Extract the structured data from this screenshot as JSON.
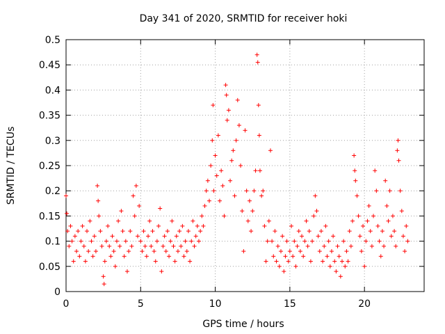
{
  "chart_data": {
    "type": "scatter",
    "title": "Day 341 of 2020, SRMTID for receiver hoki",
    "xlabel": "GPS time / hours",
    "ylabel": "SRMTID / TECUs",
    "xlim": [
      0,
      24
    ],
    "ylim": [
      0,
      0.5
    ],
    "xticks": [
      0,
      5,
      10,
      15,
      20
    ],
    "xtick_labels": [
      "0",
      "5",
      "10",
      "15",
      "20"
    ],
    "yticks": [
      0,
      0.05,
      0.1,
      0.15,
      0.2,
      0.25,
      0.3,
      0.35,
      0.4,
      0.45,
      0.5
    ],
    "ytick_labels": [
      "0",
      "0.05",
      "0.1",
      "0.15",
      "0.2",
      "0.25",
      "0.3",
      "0.35",
      "0.4",
      "0.45",
      "0.5"
    ],
    "grid": true,
    "marker": "+",
    "series_color": "#ff0000",
    "series": [
      {
        "name": "SRMTID",
        "points": [
          [
            0.0,
            0.19
          ],
          [
            0.05,
            0.155
          ],
          [
            0.1,
            0.12
          ],
          [
            0.2,
            0.09
          ],
          [
            0.3,
            0.13
          ],
          [
            0.4,
            0.1
          ],
          [
            0.5,
            0.06
          ],
          [
            0.6,
            0.11
          ],
          [
            0.7,
            0.08
          ],
          [
            0.8,
            0.12
          ],
          [
            0.9,
            0.07
          ],
          [
            1.0,
            0.1
          ],
          [
            1.1,
            0.13
          ],
          [
            1.2,
            0.09
          ],
          [
            1.3,
            0.06
          ],
          [
            1.4,
            0.12
          ],
          [
            1.5,
            0.08
          ],
          [
            1.6,
            0.14
          ],
          [
            1.7,
            0.1
          ],
          [
            1.8,
            0.07
          ],
          [
            1.9,
            0.11
          ],
          [
            2.0,
            0.08
          ],
          [
            2.1,
            0.21
          ],
          [
            2.15,
            0.18
          ],
          [
            2.2,
            0.15
          ],
          [
            2.3,
            0.12
          ],
          [
            2.4,
            0.09
          ],
          [
            2.5,
            0.03
          ],
          [
            2.55,
            0.015
          ],
          [
            2.6,
            0.06
          ],
          [
            2.7,
            0.1
          ],
          [
            2.8,
            0.13
          ],
          [
            2.9,
            0.09
          ],
          [
            3.0,
            0.07
          ],
          [
            3.1,
            0.11
          ],
          [
            3.2,
            0.08
          ],
          [
            3.3,
            0.05
          ],
          [
            3.4,
            0.1
          ],
          [
            3.5,
            0.14
          ],
          [
            3.6,
            0.09
          ],
          [
            3.7,
            0.16
          ],
          [
            3.8,
            0.12
          ],
          [
            3.9,
            0.07
          ],
          [
            4.0,
            0.1
          ],
          [
            4.1,
            0.04
          ],
          [
            4.2,
            0.08
          ],
          [
            4.3,
            0.12
          ],
          [
            4.4,
            0.09
          ],
          [
            4.5,
            0.19
          ],
          [
            4.6,
            0.15
          ],
          [
            4.7,
            0.21
          ],
          [
            4.8,
            0.11
          ],
          [
            4.9,
            0.17
          ],
          [
            5.0,
            0.1
          ],
          [
            5.1,
            0.08
          ],
          [
            5.2,
            0.12
          ],
          [
            5.3,
            0.09
          ],
          [
            5.4,
            0.07
          ],
          [
            5.5,
            0.11
          ],
          [
            5.6,
            0.14
          ],
          [
            5.7,
            0.09
          ],
          [
            5.8,
            0.12
          ],
          [
            5.9,
            0.08
          ],
          [
            6.0,
            0.06
          ],
          [
            6.1,
            0.1
          ],
          [
            6.2,
            0.13
          ],
          [
            6.3,
            0.165
          ],
          [
            6.4,
            0.04
          ],
          [
            6.5,
            0.09
          ],
          [
            6.6,
            0.11
          ],
          [
            6.7,
            0.08
          ],
          [
            6.8,
            0.12
          ],
          [
            6.9,
            0.07
          ],
          [
            7.0,
            0.1
          ],
          [
            7.1,
            0.14
          ],
          [
            7.2,
            0.09
          ],
          [
            7.3,
            0.06
          ],
          [
            7.4,
            0.11
          ],
          [
            7.5,
            0.08
          ],
          [
            7.6,
            0.12
          ],
          [
            7.7,
            0.09
          ],
          [
            7.8,
            0.13
          ],
          [
            7.9,
            0.07
          ],
          [
            8.0,
            0.1
          ],
          [
            8.1,
            0.08
          ],
          [
            8.2,
            0.12
          ],
          [
            8.3,
            0.06
          ],
          [
            8.4,
            0.1
          ],
          [
            8.5,
            0.14
          ],
          [
            8.6,
            0.09
          ],
          [
            8.7,
            0.11
          ],
          [
            8.8,
            0.13
          ],
          [
            8.9,
            0.1
          ],
          [
            9.0,
            0.12
          ],
          [
            9.1,
            0.15
          ],
          [
            9.2,
            0.13
          ],
          [
            9.3,
            0.17
          ],
          [
            9.4,
            0.2
          ],
          [
            9.5,
            0.22
          ],
          [
            9.6,
            0.18
          ],
          [
            9.7,
            0.25
          ],
          [
            9.8,
            0.3
          ],
          [
            9.85,
            0.37
          ],
          [
            9.9,
            0.2
          ],
          [
            10.0,
            0.27
          ],
          [
            10.1,
            0.23
          ],
          [
            10.2,
            0.31
          ],
          [
            10.3,
            0.18
          ],
          [
            10.4,
            0.24
          ],
          [
            10.5,
            0.21
          ],
          [
            10.6,
            0.15
          ],
          [
            10.7,
            0.41
          ],
          [
            10.75,
            0.39
          ],
          [
            10.8,
            0.34
          ],
          [
            10.9,
            0.36
          ],
          [
            11.0,
            0.22
          ],
          [
            11.1,
            0.26
          ],
          [
            11.2,
            0.28
          ],
          [
            11.3,
            0.19
          ],
          [
            11.4,
            0.3
          ],
          [
            11.5,
            0.38
          ],
          [
            11.6,
            0.33
          ],
          [
            11.7,
            0.25
          ],
          [
            11.8,
            0.16
          ],
          [
            11.9,
            0.08
          ],
          [
            12.0,
            0.32
          ],
          [
            12.1,
            0.2
          ],
          [
            12.2,
            0.14
          ],
          [
            12.3,
            0.18
          ],
          [
            12.4,
            0.12
          ],
          [
            12.5,
            0.16
          ],
          [
            12.6,
            0.2
          ],
          [
            12.7,
            0.24
          ],
          [
            12.8,
            0.47
          ],
          [
            12.85,
            0.455
          ],
          [
            12.9,
            0.37
          ],
          [
            12.95,
            0.31
          ],
          [
            13.0,
            0.24
          ],
          [
            13.1,
            0.19
          ],
          [
            13.2,
            0.2
          ],
          [
            13.3,
            0.13
          ],
          [
            13.4,
            0.06
          ],
          [
            13.5,
            0.1
          ],
          [
            13.6,
            0.14
          ],
          [
            13.7,
            0.28
          ],
          [
            13.8,
            0.1
          ],
          [
            13.9,
            0.07
          ],
          [
            14.0,
            0.12
          ],
          [
            14.1,
            0.06
          ],
          [
            14.2,
            0.09
          ],
          [
            14.3,
            0.05
          ],
          [
            14.4,
            0.08
          ],
          [
            14.5,
            0.11
          ],
          [
            14.6,
            0.04
          ],
          [
            14.7,
            0.07
          ],
          [
            14.8,
            0.1
          ],
          [
            14.9,
            0.06
          ],
          [
            15.0,
            0.08
          ],
          [
            15.1,
            0.13
          ],
          [
            15.2,
            0.07
          ],
          [
            15.3,
            0.1
          ],
          [
            15.4,
            0.05
          ],
          [
            15.5,
            0.09
          ],
          [
            15.6,
            0.12
          ],
          [
            15.7,
            0.08
          ],
          [
            15.8,
            0.11
          ],
          [
            15.9,
            0.07
          ],
          [
            16.0,
            0.1
          ],
          [
            16.1,
            0.14
          ],
          [
            16.2,
            0.09
          ],
          [
            16.3,
            0.12
          ],
          [
            16.4,
            0.06
          ],
          [
            16.5,
            0.1
          ],
          [
            16.6,
            0.15
          ],
          [
            16.7,
            0.19
          ],
          [
            16.8,
            0.16
          ],
          [
            16.9,
            0.11
          ],
          [
            17.0,
            0.08
          ],
          [
            17.1,
            0.12
          ],
          [
            17.2,
            0.06
          ],
          [
            17.3,
            0.09
          ],
          [
            17.4,
            0.13
          ],
          [
            17.5,
            0.07
          ],
          [
            17.6,
            0.1
          ],
          [
            17.7,
            0.05
          ],
          [
            17.8,
            0.08
          ],
          [
            17.9,
            0.11
          ],
          [
            18.0,
            0.06
          ],
          [
            18.1,
            0.04
          ],
          [
            18.2,
            0.09
          ],
          [
            18.3,
            0.07
          ],
          [
            18.4,
            0.03
          ],
          [
            18.5,
            0.06
          ],
          [
            18.6,
            0.1
          ],
          [
            18.7,
            0.05
          ],
          [
            18.8,
            0.08
          ],
          [
            18.9,
            0.06
          ],
          [
            19.0,
            0.12
          ],
          [
            19.1,
            0.09
          ],
          [
            19.2,
            0.14
          ],
          [
            19.3,
            0.27
          ],
          [
            19.35,
            0.24
          ],
          [
            19.4,
            0.22
          ],
          [
            19.5,
            0.19
          ],
          [
            19.6,
            0.15
          ],
          [
            19.7,
            0.11
          ],
          [
            19.8,
            0.08
          ],
          [
            19.9,
            0.13
          ],
          [
            20.0,
            0.05
          ],
          [
            20.1,
            0.1
          ],
          [
            20.2,
            0.14
          ],
          [
            20.3,
            0.17
          ],
          [
            20.4,
            0.12
          ],
          [
            20.5,
            0.09
          ],
          [
            20.6,
            0.15
          ],
          [
            20.7,
            0.24
          ],
          [
            20.8,
            0.2
          ],
          [
            20.9,
            0.13
          ],
          [
            21.0,
            0.1
          ],
          [
            21.1,
            0.07
          ],
          [
            21.2,
            0.12
          ],
          [
            21.3,
            0.09
          ],
          [
            21.4,
            0.22
          ],
          [
            21.5,
            0.17
          ],
          [
            21.6,
            0.14
          ],
          [
            21.7,
            0.2
          ],
          [
            21.8,
            0.11
          ],
          [
            21.9,
            0.15
          ],
          [
            22.0,
            0.12
          ],
          [
            22.1,
            0.09
          ],
          [
            22.2,
            0.28
          ],
          [
            22.25,
            0.3
          ],
          [
            22.3,
            0.26
          ],
          [
            22.4,
            0.2
          ],
          [
            22.5,
            0.16
          ],
          [
            22.6,
            0.11
          ],
          [
            22.7,
            0.08
          ],
          [
            22.8,
            0.13
          ],
          [
            22.9,
            0.1
          ]
        ]
      }
    ]
  }
}
